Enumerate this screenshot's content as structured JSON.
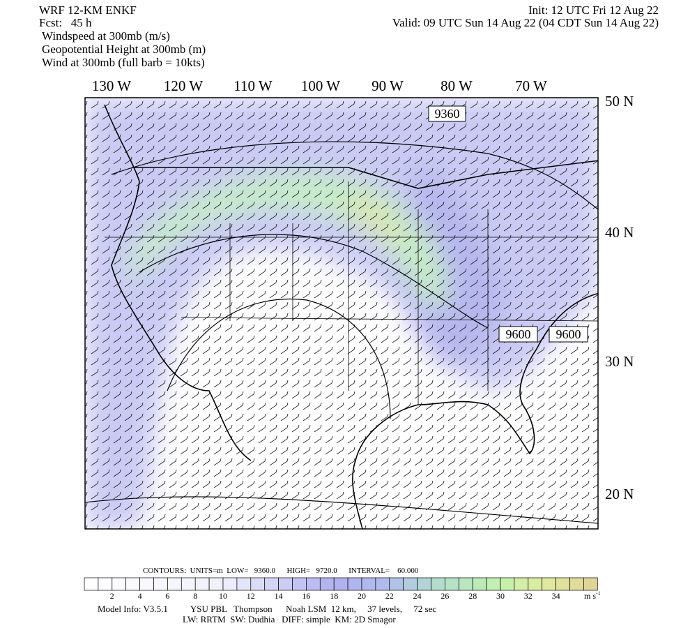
{
  "header": {
    "title": "WRF 12-KM ENKF",
    "forecast": "Fcst:   45 h",
    "init": "Init: 12 UTC Fri 12 Aug 22",
    "valid": "Valid: 09 UTC Sun 14 Aug 22 (04 CDT Sun 14 Aug 22)",
    "fields": [
      "Windspeed at 300mb (m/s)",
      "Geopotential Height at 300mb (m)",
      "Wind at 300mb (full barb = 10kts)"
    ]
  },
  "map": {
    "lon_labels": [
      "130 W",
      "120 W",
      "110 W",
      "100 W",
      "90 W",
      "80 W",
      "70 W"
    ],
    "lat_labels": [
      "50 N",
      "40 N",
      "30 N",
      "20 N"
    ],
    "contour_labels": [
      "9360",
      "9600",
      "9600"
    ]
  },
  "footer": {
    "contours": "CONTOURS:  UNITS=m  LOW=   9360.0      HIGH=   9720.0      INTERVAL=    60.000",
    "colorbar_ticks": [
      2,
      4,
      6,
      8,
      10,
      12,
      14,
      16,
      18,
      20,
      22,
      24,
      26,
      28,
      30,
      32,
      34
    ],
    "units": "m s",
    "units_exponent": "-1",
    "model_info": "Model Info: V3.5.1          YSU PBL   Thompson      Noah LSM  12 km,     37 levels,     72 sec",
    "physics": "LW: RRTM  SW: Dudhia   DIFF: simple  KM: 2D Smagor"
  }
}
